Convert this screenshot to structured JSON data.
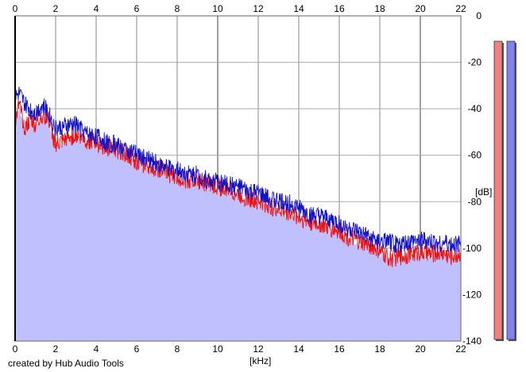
{
  "app": {
    "credit": "created by Hub Audio Tools"
  },
  "chart_data": {
    "type": "area",
    "xlabel": "[kHz]",
    "ylabel": "[dB]",
    "xlim": [
      0,
      22
    ],
    "ylim": [
      -140,
      0
    ],
    "x_ticks": [
      0,
      2,
      4,
      6,
      8,
      10,
      12,
      14,
      16,
      18,
      20,
      22
    ],
    "y_ticks": [
      0,
      -20,
      -40,
      -60,
      -80,
      -100,
      -120,
      -140
    ],
    "grid": true,
    "series": [
      {
        "color": "#ee1111",
        "x": [
          0,
          0.2,
          0.5,
          0.8,
          1.0,
          1.3,
          1.6,
          2.0,
          2.5,
          3.0,
          3.5,
          4.0,
          4.5,
          5.0,
          5.5,
          6.0,
          6.5,
          7.0,
          7.5,
          8.0,
          8.5,
          9.0,
          9.5,
          10.0,
          10.5,
          11.0,
          11.5,
          12.0,
          12.5,
          13.0,
          13.5,
          14.0,
          14.5,
          15.0,
          15.5,
          16.0,
          16.5,
          17.0,
          17.5,
          18.0,
          18.5,
          19.0,
          19.5,
          20.0,
          20.5,
          21.0,
          21.5,
          22.0
        ],
        "values": [
          -45,
          -38,
          -48,
          -44,
          -47,
          -42,
          -43,
          -55,
          -53,
          -50,
          -53,
          -54,
          -56,
          -57,
          -59,
          -62,
          -64,
          -65,
          -67,
          -69,
          -70,
          -70,
          -72,
          -73,
          -74,
          -76,
          -78,
          -79,
          -81,
          -83,
          -84,
          -86,
          -88,
          -89,
          -91,
          -92,
          -95,
          -97,
          -98,
          -101,
          -104,
          -103,
          -102,
          -101,
          -102,
          -101,
          -103,
          -102
        ]
      },
      {
        "color": "#1111cc",
        "x": [
          0,
          0.2,
          0.5,
          0.8,
          1.0,
          1.3,
          1.6,
          2.0,
          2.5,
          3.0,
          3.5,
          4.0,
          4.5,
          5.0,
          5.5,
          6.0,
          6.5,
          7.0,
          7.5,
          8.0,
          8.5,
          9.0,
          9.5,
          10.0,
          10.5,
          11.0,
          11.5,
          12.0,
          12.5,
          13.0,
          13.5,
          14.0,
          14.5,
          15.0,
          15.5,
          16.0,
          16.5,
          17.0,
          17.5,
          18.0,
          18.5,
          19.0,
          19.5,
          20.0,
          20.5,
          21.0,
          21.5,
          22.0
        ],
        "values": [
          -35,
          -33,
          -38,
          -40,
          -41,
          -38,
          -40,
          -48,
          -47,
          -46,
          -50,
          -51,
          -54,
          -55,
          -57,
          -59,
          -61,
          -63,
          -65,
          -66,
          -67,
          -68,
          -70,
          -71,
          -72,
          -73,
          -75,
          -76,
          -78,
          -79,
          -80,
          -82,
          -85,
          -86,
          -87,
          -89,
          -91,
          -93,
          -95,
          -97,
          -97,
          -98,
          -97,
          -96,
          -97,
          -97,
          -98,
          -98
        ]
      }
    ]
  },
  "meters": {
    "left_color": "#f08080",
    "right_color": "#8080ee",
    "left_level_db": -140,
    "right_level_db": -140
  }
}
